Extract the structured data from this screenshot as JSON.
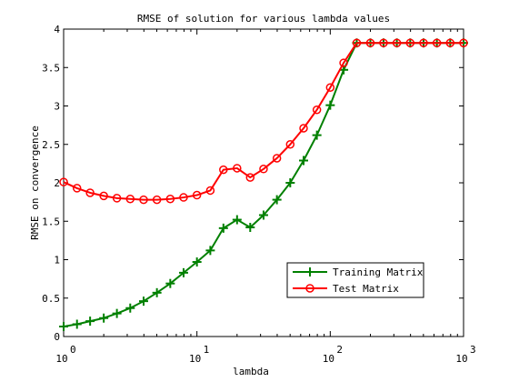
{
  "chart_data": {
    "type": "line",
    "title": "RMSE of solution for various lambda values",
    "xlabel": "lambda",
    "ylabel": "RMSE on convergence",
    "xscale": "log",
    "xlim": [
      1,
      1000
    ],
    "ylim": [
      0,
      4
    ],
    "x_ticks": [
      {
        "value": 1,
        "base": "10",
        "exp": "0"
      },
      {
        "value": 10,
        "base": "10",
        "exp": "1"
      },
      {
        "value": 100,
        "base": "10",
        "exp": "2"
      },
      {
        "value": 1000,
        "base": "10",
        "exp": "3"
      }
    ],
    "y_ticks": [
      "0",
      "0.5",
      "1",
      "1.5",
      "2",
      "2.5",
      "3",
      "3.5",
      "4"
    ],
    "legend_position": "bottom-right",
    "grid": false,
    "series": [
      {
        "name": "Training Matrix",
        "color": "#008000",
        "marker": "plus",
        "x": [
          1,
          1.26,
          1.58,
          2,
          2.51,
          3.16,
          3.98,
          5.01,
          6.31,
          7.94,
          10,
          12.6,
          15.8,
          20,
          25.1,
          31.6,
          39.8,
          50.1,
          63.1,
          79.4,
          100,
          126,
          158,
          200,
          251,
          316,
          398,
          501,
          631,
          794,
          1000
        ],
        "values": [
          0.13,
          0.16,
          0.2,
          0.24,
          0.3,
          0.37,
          0.46,
          0.57,
          0.69,
          0.83,
          0.97,
          1.12,
          1.41,
          1.52,
          1.42,
          1.58,
          1.78,
          2.0,
          2.29,
          2.62,
          3.01,
          3.47,
          3.82,
          3.82,
          3.82,
          3.82,
          3.82,
          3.82,
          3.82,
          3.82,
          3.82
        ]
      },
      {
        "name": "Test Matrix",
        "color": "#ff0000",
        "marker": "circle",
        "x": [
          1,
          1.26,
          1.58,
          2,
          2.51,
          3.16,
          3.98,
          5.01,
          6.31,
          7.94,
          10,
          12.6,
          15.8,
          20,
          25.1,
          31.6,
          39.8,
          50.1,
          63.1,
          79.4,
          100,
          126,
          158,
          200,
          251,
          316,
          398,
          501,
          631,
          794,
          1000
        ],
        "values": [
          2.01,
          1.93,
          1.87,
          1.83,
          1.8,
          1.79,
          1.78,
          1.78,
          1.79,
          1.81,
          1.84,
          1.9,
          2.17,
          2.19,
          2.07,
          2.18,
          2.32,
          2.5,
          2.71,
          2.95,
          3.24,
          3.56,
          3.82,
          3.82,
          3.82,
          3.82,
          3.82,
          3.82,
          3.82,
          3.82,
          3.82
        ]
      }
    ]
  }
}
